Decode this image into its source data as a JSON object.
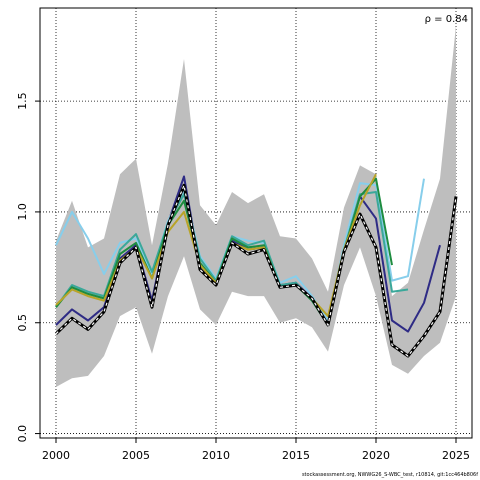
{
  "chart_data": {
    "type": "line",
    "title": "",
    "xlabel": "",
    "ylabel": "",
    "xlim": [
      1999,
      2026
    ],
    "ylim": [
      -0.02,
      1.92
    ],
    "x_ticks": [
      2000,
      2005,
      2010,
      2015,
      2020,
      2025
    ],
    "y_ticks": [
      0.0,
      0.5,
      1.0,
      1.5
    ],
    "y_tick_labels": [
      "0.0",
      "0.5",
      "1.0",
      "1.5"
    ],
    "grid": "dotted",
    "annotation": "ρ = 0.84",
    "credit": "stockassessment.org, NWWG26_S-WBC_test, r10814, git:1cc464b806f",
    "colors": {
      "band": "#bebebe",
      "current": "#000000",
      "peel1": "#2e2b85",
      "peel2": "#87ceeb",
      "peel3": "#3aa89a",
      "peel4": "#1e8c3f",
      "peel5": "#b8a428"
    },
    "band": {
      "x": [
        2000,
        2001,
        2002,
        2003,
        2004,
        2005,
        2006,
        2007,
        2008,
        2009,
        2010,
        2011,
        2012,
        2013,
        2014,
        2015,
        2016,
        2017,
        2018,
        2019,
        2020,
        2021,
        2022,
        2023,
        2024,
        2025
      ],
      "lower": [
        0.21,
        0.25,
        0.26,
        0.35,
        0.53,
        0.57,
        0.36,
        0.62,
        0.8,
        0.56,
        0.49,
        0.64,
        0.62,
        0.62,
        0.5,
        0.52,
        0.48,
        0.37,
        0.67,
        0.84,
        0.62,
        0.31,
        0.27,
        0.35,
        0.41,
        0.62
      ],
      "upper": [
        0.87,
        1.05,
        0.84,
        0.88,
        1.17,
        1.24,
        0.85,
        1.22,
        1.69,
        1.03,
        0.94,
        1.09,
        1.04,
        1.08,
        0.89,
        0.88,
        0.79,
        0.64,
        1.02,
        1.21,
        1.17,
        0.62,
        0.68,
        0.92,
        1.15,
        1.84
      ]
    },
    "series": [
      {
        "color_key": "current",
        "dashed": true,
        "x": [
          2000,
          2001,
          2002,
          2003,
          2004,
          2005,
          2006,
          2007,
          2008,
          2009,
          2010,
          2011,
          2012,
          2013,
          2014,
          2015,
          2016,
          2017,
          2018,
          2019,
          2020,
          2021,
          2022,
          2023,
          2024,
          2025
        ],
        "values": [
          0.45,
          0.52,
          0.47,
          0.55,
          0.77,
          0.84,
          0.57,
          0.94,
          1.12,
          0.74,
          0.67,
          0.86,
          0.81,
          0.83,
          0.66,
          0.67,
          0.61,
          0.49,
          0.82,
          0.99,
          0.84,
          0.4,
          0.35,
          0.44,
          0.55,
          1.07
        ]
      },
      {
        "color_key": "peel1",
        "x": [
          2000,
          2001,
          2002,
          2003,
          2004,
          2005,
          2006,
          2007,
          2008,
          2009,
          2010,
          2011,
          2012,
          2013,
          2014,
          2015,
          2016,
          2017,
          2018,
          2019,
          2020,
          2021,
          2022,
          2023,
          2024
        ],
        "values": [
          0.49,
          0.56,
          0.51,
          0.57,
          0.79,
          0.85,
          0.6,
          0.95,
          1.16,
          0.75,
          0.68,
          0.87,
          0.83,
          0.84,
          0.67,
          0.68,
          0.61,
          0.49,
          0.84,
          1.07,
          0.97,
          0.51,
          0.46,
          0.59,
          0.85
        ]
      },
      {
        "color_key": "peel2",
        "x": [
          2000,
          2001,
          2002,
          2003,
          2004,
          2005,
          2006,
          2007,
          2008,
          2009,
          2010,
          2011,
          2012,
          2013,
          2014,
          2015,
          2016,
          2017,
          2018,
          2019,
          2020,
          2021,
          2022,
          2023
        ],
        "values": [
          0.85,
          1.0,
          0.88,
          0.72,
          0.86,
          0.88,
          0.72,
          0.96,
          1.1,
          0.8,
          0.7,
          0.89,
          0.87,
          0.86,
          0.68,
          0.71,
          0.62,
          0.51,
          0.85,
          1.13,
          1.12,
          0.69,
          0.71,
          1.15
        ]
      },
      {
        "color_key": "peel3",
        "x": [
          2000,
          2001,
          2002,
          2003,
          2004,
          2005,
          2006,
          2007,
          2008,
          2009,
          2010,
          2011,
          2012,
          2013,
          2014,
          2015,
          2016,
          2017,
          2018,
          2019,
          2020,
          2021,
          2022
        ],
        "values": [
          0.57,
          0.67,
          0.64,
          0.62,
          0.83,
          0.9,
          0.73,
          0.95,
          1.08,
          0.79,
          0.69,
          0.89,
          0.85,
          0.87,
          0.67,
          0.68,
          0.6,
          0.49,
          0.83,
          1.08,
          1.09,
          0.64,
          0.65
        ]
      },
      {
        "color_key": "peel4",
        "x": [
          2000,
          2001,
          2002,
          2003,
          2004,
          2005,
          2006,
          2007,
          2008,
          2009,
          2010,
          2011,
          2012,
          2013,
          2014,
          2015,
          2016,
          2017,
          2018,
          2019,
          2020,
          2021
        ],
        "values": [
          0.57,
          0.66,
          0.63,
          0.61,
          0.81,
          0.86,
          0.7,
          0.94,
          1.05,
          0.77,
          0.68,
          0.88,
          0.84,
          0.85,
          0.66,
          0.67,
          0.6,
          0.49,
          0.82,
          1.07,
          1.15,
          0.76
        ]
      },
      {
        "color_key": "peel5",
        "x": [
          2000,
          2001,
          2002,
          2003,
          2004,
          2005,
          2006,
          2007,
          2008,
          2009,
          2010,
          2011,
          2012,
          2013,
          2014,
          2015,
          2016,
          2017,
          2018,
          2019,
          2020
        ],
        "values": [
          0.58,
          0.65,
          0.62,
          0.6,
          0.78,
          0.84,
          0.7,
          0.91,
          1.0,
          0.76,
          0.68,
          0.86,
          0.83,
          0.84,
          0.66,
          0.67,
          0.61,
          0.53,
          0.83,
          1.03,
          1.17
        ]
      }
    ]
  }
}
